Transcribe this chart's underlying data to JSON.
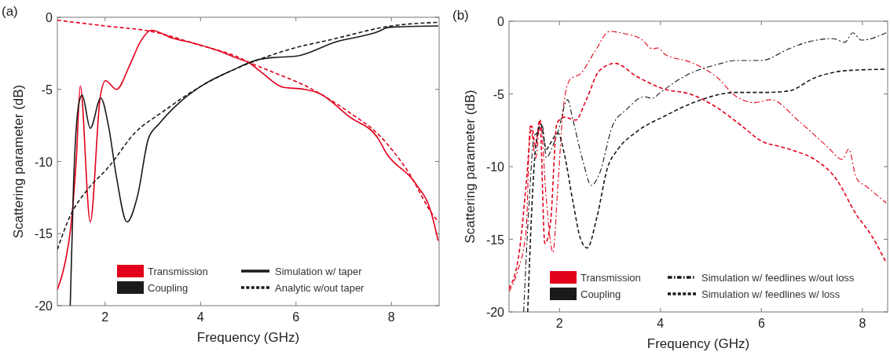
{
  "chart_data": [
    {
      "type": "line",
      "title": "(a)",
      "xlabel": "Frequency (GHz)",
      "ylabel": "Scattering parameter (dB)",
      "xlim": [
        1,
        9
      ],
      "ylim": [
        -20,
        0
      ],
      "xticks": [
        2,
        4,
        6,
        8
      ],
      "yticks": [
        -20,
        -15,
        -10,
        -5,
        0
      ],
      "legend": "bottom",
      "annotations": [
        "Simulation w/ taper",
        "Analytic w/out taper"
      ],
      "series": [
        {
          "name": "Transmission",
          "color": "#e3001b",
          "line_style": "solid",
          "x": [
            1,
            1.17,
            1.28,
            1.4,
            1.48,
            1.69,
            1.9,
            2.01,
            2.24,
            2.52,
            2.74,
            2.97,
            3.41,
            3.86,
            4.36,
            4.74,
            5.04,
            5.29,
            5.73,
            6.18,
            6.5,
            7.12,
            7.72,
            7.89,
            8.5,
            8.83,
            8.98
          ],
          "values": [
            -18.9,
            -16.9,
            -14.6,
            -9.7,
            -4.76,
            -14.2,
            -5.5,
            -4.4,
            -5.0,
            -3.3,
            -1.7,
            -0.9,
            -1.45,
            -1.8,
            -2.3,
            -2.8,
            -3.2,
            -3.85,
            -4.85,
            -5.0,
            -5.3,
            -6.9,
            -8.4,
            -9.4,
            -11.5,
            -13.5,
            -15.5
          ]
        },
        {
          "name": "Coupling",
          "color": "#1a1a1a",
          "line_style": "solid",
          "x": [
            1.27,
            1.34,
            1.45,
            1.52,
            1.69,
            1.91,
            2.07,
            2.24,
            2.46,
            2.68,
            2.91,
            3.13,
            3.53,
            4.0,
            4.65,
            5.2,
            5.5,
            6.0,
            6.84,
            7.72,
            7.94,
            8.98
          ],
          "values": [
            -20,
            -11.5,
            -6.0,
            -5.4,
            -7.7,
            -5.6,
            -7.5,
            -11.1,
            -14.2,
            -12.4,
            -8.4,
            -7.4,
            -6.0,
            -4.8,
            -3.7,
            -2.95,
            -2.8,
            -2.7,
            -1.7,
            -1.0,
            -0.7,
            -0.6
          ]
        },
        {
          "color": "#e3001b",
          "line_style": "dashed",
          "x": [
            1,
            2,
            3,
            4,
            4.74,
            5,
            5.29,
            6.4,
            7.12,
            7.75,
            8.33,
            8.94,
            9
          ],
          "values": [
            -0.2,
            -0.6,
            -1.0,
            -1.95,
            -2.7,
            -3.1,
            -3.5,
            -5.1,
            -6.6,
            -8.2,
            -10.6,
            -14.0,
            -14.2
          ]
        },
        {
          "color": "#1a1a1a",
          "line_style": "dashed",
          "x": [
            1,
            1.28,
            1.62,
            2.07,
            2.63,
            3.19,
            4.0,
            4.65,
            5.29,
            6.0,
            6.67,
            8.0,
            9
          ],
          "values": [
            -16.1,
            -13.7,
            -12.0,
            -10.4,
            -8.0,
            -6.6,
            -4.8,
            -3.7,
            -2.85,
            -2.1,
            -1.6,
            -0.6,
            -0.35
          ]
        }
      ]
    },
    {
      "type": "line",
      "title": "(b)",
      "xlabel": "Frequency (GHz)",
      "ylabel": "Scattering parameter (dB)",
      "xlim": [
        1,
        8.5
      ],
      "ylim": [
        -20,
        0
      ],
      "xticks": [
        2,
        4,
        6,
        8
      ],
      "yticks": [
        -20,
        -15,
        -10,
        -5,
        0
      ],
      "legend": "bottom",
      "annotations": [
        "Simulation w/ feedlines w/out loss",
        "Simulation w/ feedlines w/ loss"
      ],
      "series": [
        {
          "name": "Transmission",
          "color": "#e3001b",
          "line_style": "dashdot",
          "x": [
            1,
            1.16,
            1.34,
            1.42,
            1.53,
            1.62,
            1.74,
            1.87,
            1.97,
            2.08,
            2.21,
            2.42,
            2.68,
            3.0,
            3.21,
            3.63,
            3.84,
            3.95,
            4.1,
            4.58,
            5.1,
            5.51,
            5.87,
            6.18,
            6.75,
            7.31,
            7.6,
            7.73,
            7.88,
            8.09,
            8.47
          ],
          "values": [
            -18.6,
            -17.3,
            -14.4,
            -7.2,
            -9.4,
            -6.8,
            -12.3,
            -15.9,
            -11.2,
            -5.8,
            -4.0,
            -3.6,
            -2.2,
            -0.7,
            -0.8,
            -1.26,
            -1.9,
            -1.84,
            -2.3,
            -2.8,
            -3.8,
            -5.2,
            -5.6,
            -5.4,
            -6.9,
            -8.65,
            -9.5,
            -8.8,
            -10.8,
            -11.4,
            -12.5
          ]
        },
        {
          "name": "Coupling",
          "color": "#1a1a1a",
          "line_style": "dashdot",
          "x": [
            1.29,
            1.39,
            1.5,
            1.55,
            1.66,
            1.74,
            1.84,
            1.97,
            2.16,
            2.26,
            2.47,
            2.63,
            2.79,
            3.05,
            3.32,
            3.68,
            3.84,
            4.0,
            4.37,
            4.58,
            5.1,
            5.51,
            6.0,
            6.54,
            6.9,
            7.42,
            7.65,
            7.81,
            7.98,
            8.47
          ],
          "values": [
            -20,
            -13.0,
            -7.9,
            -7.7,
            -7.2,
            -9.4,
            -8.8,
            -7.6,
            -5.4,
            -6.7,
            -9.7,
            -11.3,
            -10.5,
            -7.2,
            -6.1,
            -5.2,
            -5.3,
            -4.9,
            -4.0,
            -3.6,
            -3.0,
            -2.7,
            -2.7,
            -1.9,
            -1.45,
            -1.2,
            -1.45,
            -0.8,
            -1.3,
            -0.8
          ]
        },
        {
          "color": "#e3001b",
          "line_style": "dashed",
          "x": [
            1,
            1.21,
            1.34,
            1.45,
            1.52,
            1.61,
            1.71,
            1.82,
            1.95,
            2.1,
            2.32,
            2.53,
            2.79,
            3.1,
            3.53,
            4.1,
            4.58,
            5.1,
            5.61,
            6.03,
            6.34,
            6.64,
            7.05,
            7.47,
            7.88,
            8.19,
            8.47
          ],
          "values": [
            -18.4,
            -15.7,
            -11.2,
            -7.2,
            -8.6,
            -6.8,
            -15.3,
            -13.9,
            -7.0,
            -6.6,
            -6.8,
            -5.4,
            -3.4,
            -2.9,
            -3.8,
            -4.7,
            -5.0,
            -5.9,
            -7.2,
            -8.3,
            -8.6,
            -8.9,
            -9.5,
            -10.8,
            -13.3,
            -14.8,
            -16.6
          ]
        },
        {
          "color": "#1a1a1a",
          "line_style": "dashed",
          "x": [
            1.37,
            1.45,
            1.53,
            1.63,
            1.74,
            1.82,
            1.97,
            2.1,
            2.26,
            2.42,
            2.55,
            2.74,
            2.95,
            3.16,
            3.53,
            4.1,
            4.58,
            5.51,
            6.08,
            6.54,
            7.05,
            7.68,
            8.47
          ],
          "values": [
            -20,
            -13.0,
            -8.6,
            -7.1,
            -8.8,
            -8.4,
            -7.7,
            -9.2,
            -12.3,
            -15.0,
            -15.6,
            -13.5,
            -10.1,
            -8.8,
            -7.6,
            -6.5,
            -5.7,
            -4.9,
            -4.9,
            -4.8,
            -3.9,
            -3.4,
            -3.3
          ]
        }
      ]
    }
  ]
}
